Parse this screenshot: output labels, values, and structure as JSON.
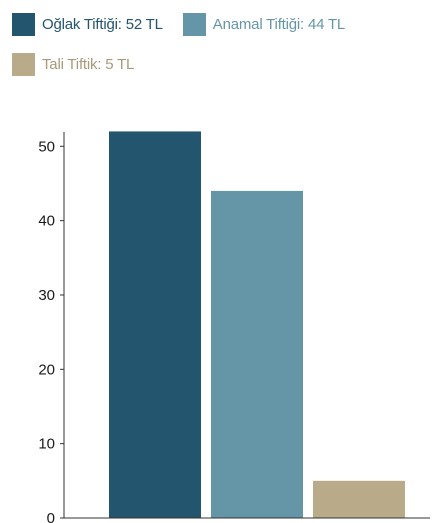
{
  "chart_data": {
    "type": "bar",
    "categories": [
      "Oğlak Tiftiği",
      "Anamal Tiftiği",
      "Tali Tiftik"
    ],
    "values": [
      52,
      44,
      5
    ],
    "series": [
      {
        "name": "Oğlak Tiftiği: 52 TL",
        "value": 52,
        "color": "#23566e"
      },
      {
        "name": "Anamal Tiftiği: 44 TL",
        "value": 44,
        "color": "#6496a8"
      },
      {
        "name": "Tali Tiftik: 5 TL",
        "value": 5,
        "color": "#b9aa89"
      }
    ],
    "ylim": [
      0,
      53
    ],
    "yticks": [
      "0",
      "10",
      "20",
      "30",
      "40",
      "50"
    ],
    "grid": false,
    "legend_placement": "top-left"
  },
  "legend": {
    "items": [
      {
        "label": "Oğlak Tiftiği: 52 TL",
        "label_color": "#23566e",
        "swatch_color": "#23566e"
      },
      {
        "label": "Anamal Tiftiği: 44 TL",
        "label_color": "#6496a8",
        "swatch_color": "#6496a8"
      },
      {
        "label": "Tali Tiftik: 5 TL",
        "label_color": "#a89a7a",
        "swatch_color": "#b9aa89"
      }
    ]
  }
}
